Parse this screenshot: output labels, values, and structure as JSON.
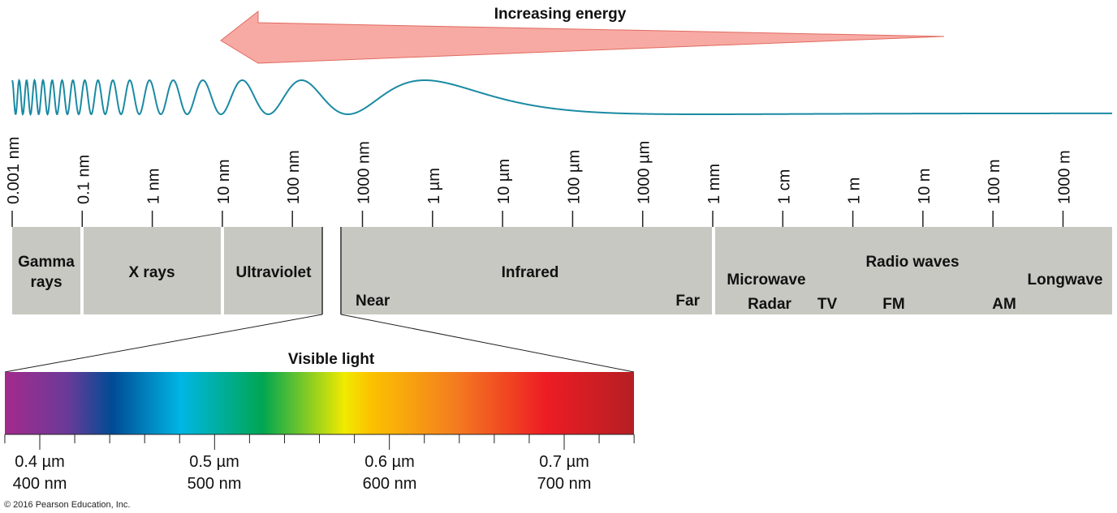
{
  "energy_label": "Increasing energy",
  "colors": {
    "arrow_fill": "#f7aaa3",
    "arrow_stroke": "#e06a60",
    "wave": "#1a8aa3",
    "band": "#c8c8c2",
    "text": "#111111"
  },
  "scale_labels": [
    "0.001 nm",
    "0.1 nm",
    "1 nm",
    "10 nm",
    "100 nm",
    "1000 nm",
    "1 µm",
    "10 µm",
    "100 µm",
    "1000 µm",
    "1 mm",
    "1 cm",
    "1 m",
    "10 m",
    "100 m",
    "1000 m"
  ],
  "bands": {
    "gamma_line1": "Gamma",
    "gamma_line2": "rays",
    "xrays": "X rays",
    "ultraviolet": "Ultraviolet",
    "infrared": "Infrared",
    "near": "Near",
    "far": "Far",
    "microwave": "Microwave",
    "radar": "Radar",
    "tv": "TV",
    "radio_waves": "Radio waves",
    "fm": "FM",
    "am": "AM",
    "longwave": "Longwave"
  },
  "visible": {
    "title": "Visible light",
    "gradient_colors": [
      "#a42a8c",
      "#6a3a98",
      "#004b95",
      "#00b6e4",
      "#00a651",
      "#f1ea00",
      "#fbc300",
      "#f47a20",
      "#ed1c24",
      "#b41f24"
    ],
    "ticks_um": [
      0.4,
      0.5,
      0.6,
      0.7
    ],
    "labels": [
      {
        "um": "0.4 µm",
        "nm": "400 nm"
      },
      {
        "um": "0.5 µm",
        "nm": "500 nm"
      },
      {
        "um": "0.6 µm",
        "nm": "600 nm"
      },
      {
        "um": "0.7 µm",
        "nm": "700 nm"
      }
    ]
  },
  "copyright": "© 2016 Pearson Education, Inc."
}
